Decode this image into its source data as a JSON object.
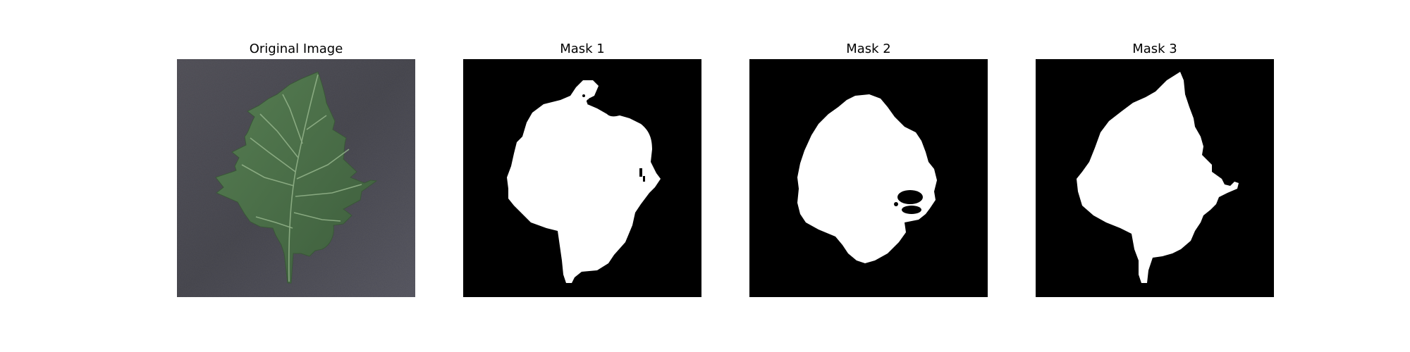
{
  "panels": [
    {
      "title": "Original Image"
    },
    {
      "title": "Mask 1"
    },
    {
      "title": "Mask 2"
    },
    {
      "title": "Mask 3"
    }
  ],
  "colors": {
    "background_surface": "#4a4a52",
    "leaf": "#4a6e47",
    "leaf_vein": "#8fae86",
    "mask_foreground": "#ffffff",
    "mask_background": "#000000"
  }
}
